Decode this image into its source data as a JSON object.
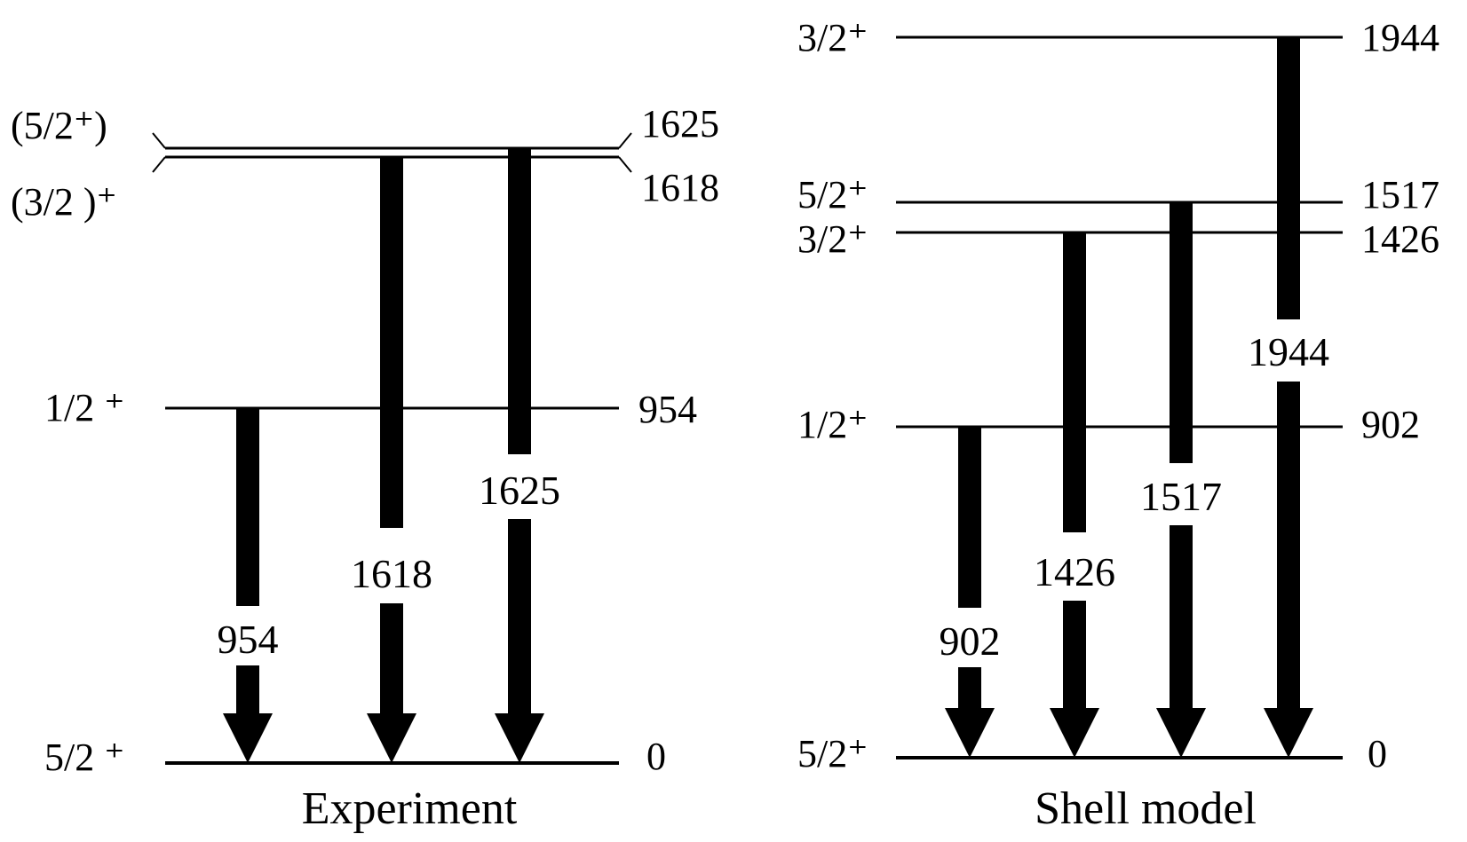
{
  "experiment": {
    "title": "Experiment",
    "levels": [
      {
        "spin": "(5/2⁺)",
        "energy": "1625"
      },
      {
        "spin": "(3/2 )⁺",
        "energy": "1618"
      },
      {
        "spin": "1/2 ⁺",
        "energy": "954"
      },
      {
        "spin": "5/2 ⁺",
        "energy": "0"
      }
    ],
    "transitions": [
      {
        "label": "954"
      },
      {
        "label": "1618"
      },
      {
        "label": "1625"
      }
    ]
  },
  "shell_model": {
    "title": "Shell model",
    "levels": [
      {
        "spin": "3/2⁺",
        "energy": "1944"
      },
      {
        "spin": "5/2⁺",
        "energy": "1517"
      },
      {
        "spin": "3/2⁺",
        "energy": "1426"
      },
      {
        "spin": "1/2⁺",
        "energy": "902"
      },
      {
        "spin": "5/2⁺",
        "energy": "0"
      }
    ],
    "transitions": [
      {
        "label": "902"
      },
      {
        "label": "1426"
      },
      {
        "label": "1517"
      },
      {
        "label": "1944"
      }
    ]
  }
}
